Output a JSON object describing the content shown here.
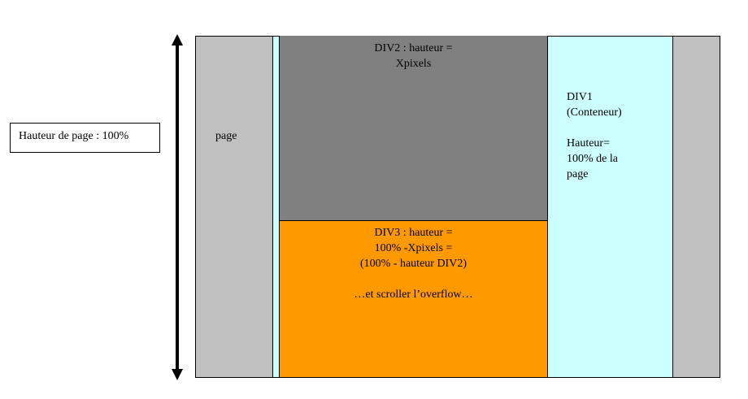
{
  "left_label": "Hauteur de page : 100%",
  "page_label": "page",
  "div1": {
    "lines": [
      "DIV1",
      "(Conteneur)",
      "Hauteur=",
      "100% de la",
      "page"
    ]
  },
  "div2": {
    "lines": [
      "DIV2 : hauteur =",
      "Xpixels"
    ]
  },
  "div3": {
    "lines": [
      "DIV3 : hauteur =",
      "100% -Xpixels =",
      "(100% - hauteur DIV2)",
      "…et scroller l’overflow…"
    ]
  },
  "colors": {
    "page": "#c0c0c0",
    "div1": "#ccffff",
    "div2": "#808080",
    "div3": "#ff9900",
    "border": "#000000"
  }
}
